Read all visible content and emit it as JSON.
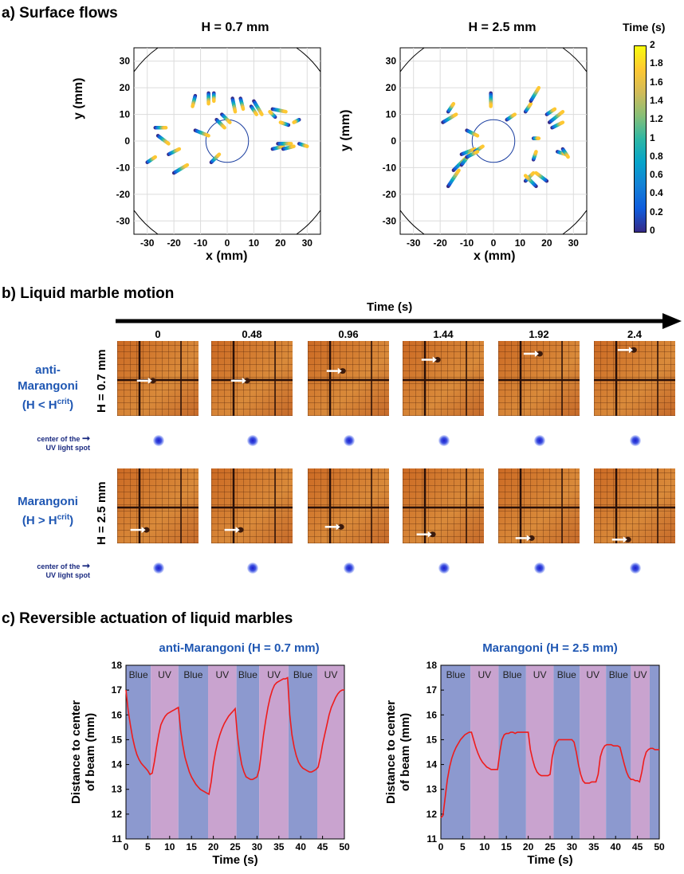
{
  "panel_a": {
    "title": "a) Surface flows",
    "plots": [
      {
        "title": "H = 0.7 mm",
        "xlabel": "x (mm)",
        "ylabel": "y (mm)"
      },
      {
        "title": "H = 2.5 mm",
        "xlabel": "x (mm)",
        "ylabel": "y (mm)"
      }
    ],
    "ticks": [
      "-30",
      "-20",
      "-10",
      "0",
      "10",
      "20",
      "30"
    ],
    "yticks": [
      "30",
      "20",
      "10",
      "0",
      "-10",
      "-20",
      "-30"
    ],
    "colorbar": {
      "title": "Time (s)",
      "ticks": [
        "2",
        "1.8",
        "1.6",
        "1.4",
        "1.2",
        "1",
        "0.8",
        "0.6",
        "0.4",
        "0.2",
        "0"
      ],
      "colors": [
        "#352a87",
        "#0f5cdd",
        "#1481d6",
        "#06a4ca",
        "#2eb7a4",
        "#87bf77",
        "#d1bb59",
        "#fec832",
        "#f9fb0e"
      ]
    }
  },
  "panel_b": {
    "title": "b) Liquid marble motion",
    "time_axis_label": "Time (s)",
    "times": [
      "0",
      "0.48",
      "0.96",
      "1.44",
      "1.92",
      "2.4"
    ],
    "row1": {
      "label_line1": "anti-",
      "label_line2": "Marangoni",
      "label_line3_pre": "(H < H",
      "label_line3_sup": "crit",
      "label_line3_post": ")",
      "side_label": "H = 0.7 mm"
    },
    "row2": {
      "label_line1": "Marangoni",
      "label_line2_pre": "(H > H",
      "label_line2_sup": "crit",
      "label_line2_post": ")",
      "side_label": "H = 2.5 mm"
    },
    "uv_label_line1": "center of the",
    "uv_label_line2": "UV light spot"
  },
  "panel_c": {
    "title": "c) Reversible actuation of liquid marbles",
    "plots": [
      {
        "title": "anti-Marangoni (H = 0.7 mm)",
        "band_labels": [
          "Blue",
          "UV",
          "Blue",
          "UV",
          "Blue",
          "UV",
          "Blue",
          "UV"
        ]
      },
      {
        "title": "Marangoni (H = 2.5 mm)",
        "band_labels": [
          "Blue",
          "UV",
          "Blue",
          "UV",
          "Blue",
          "UV",
          "Blue",
          "UV"
        ]
      }
    ],
    "ylabel_line1": "Distance to center",
    "ylabel_line2": "of beam (mm)",
    "xlabel": "Time (s)",
    "xticks": [
      "0",
      "5",
      "10",
      "15",
      "20",
      "25",
      "30",
      "35",
      "40",
      "45",
      "50"
    ],
    "yticks": [
      "18",
      "17",
      "16",
      "15",
      "14",
      "13",
      "12",
      "11"
    ],
    "colors": {
      "blue_band": "#8c99cf",
      "uv_band": "#c9a3cf",
      "line": "#ee1c1c"
    }
  },
  "chart_data": [
    {
      "type": "line",
      "title": "anti-Marangoni (H = 0.7 mm)",
      "xlabel": "Time (s)",
      "ylabel": "Distance to center of beam (mm)",
      "xlim": [
        0,
        50
      ],
      "ylim": [
        11,
        18
      ],
      "bands": [
        {
          "label": "Blue",
          "x0": 0,
          "x1": 5.7
        },
        {
          "label": "UV",
          "x0": 5.7,
          "x1": 12
        },
        {
          "label": "Blue",
          "x0": 12,
          "x1": 18.8
        },
        {
          "label": "UV",
          "x0": 18.8,
          "x1": 25.3
        },
        {
          "label": "Blue",
          "x0": 25.3,
          "x1": 30.5
        },
        {
          "label": "UV",
          "x0": 30.5,
          "x1": 37.2
        },
        {
          "label": "Blue",
          "x0": 37.2,
          "x1": 43.8
        },
        {
          "label": "UV",
          "x0": 43.8,
          "x1": 50
        }
      ],
      "series": [
        {
          "x": [
            0,
            0.5,
            1,
            1.5,
            2,
            2.5,
            3,
            3.5,
            4,
            4.5,
            5,
            5.5,
            6,
            6.5,
            7,
            7.5,
            8,
            8.5,
            9,
            9.5,
            10,
            10.5,
            11,
            11.5,
            12,
            12.5,
            13,
            13.5,
            14,
            14.5,
            15,
            15.5,
            16,
            16.5,
            17,
            17.5,
            18,
            18.5,
            19,
            19.5,
            20,
            20.5,
            21,
            21.5,
            22,
            22.5,
            23,
            23.5,
            24,
            24.5,
            25,
            25.5,
            26,
            26.5,
            27,
            27.5,
            28,
            28.5,
            29,
            29.5,
            30,
            30.5,
            31,
            31.5,
            32,
            32.5,
            33,
            33.5,
            34,
            34.5,
            35,
            35.5,
            36,
            36.5,
            37,
            37.5,
            38,
            38.5,
            39,
            39.5,
            40,
            40.5,
            41,
            41.5,
            42,
            42.5,
            43,
            43.5,
            44,
            44.5,
            45,
            45.5,
            46,
            46.5,
            47,
            47.5,
            48,
            48.5,
            49,
            49.5,
            50
          ],
          "y": [
            17.0,
            16.2,
            15.6,
            15.1,
            14.7,
            14.4,
            14.2,
            14.05,
            13.95,
            13.85,
            13.75,
            13.6,
            13.65,
            14.1,
            14.7,
            15.2,
            15.6,
            15.8,
            15.95,
            16.05,
            16.1,
            16.15,
            16.2,
            16.25,
            16.3,
            15.4,
            14.8,
            14.3,
            14.0,
            13.7,
            13.5,
            13.35,
            13.2,
            13.1,
            13.0,
            12.95,
            12.9,
            12.85,
            12.8,
            13.3,
            14.0,
            14.5,
            14.9,
            15.2,
            15.45,
            15.65,
            15.8,
            15.95,
            16.05,
            16.15,
            16.25,
            15.2,
            14.5,
            14.0,
            13.7,
            13.5,
            13.45,
            13.4,
            13.4,
            13.45,
            13.5,
            13.8,
            14.5,
            15.2,
            15.8,
            16.3,
            16.7,
            17.0,
            17.2,
            17.3,
            17.35,
            17.4,
            17.45,
            17.45,
            17.5,
            16.0,
            15.2,
            14.7,
            14.35,
            14.1,
            13.95,
            13.85,
            13.8,
            13.75,
            13.7,
            13.7,
            13.75,
            13.8,
            13.9,
            14.3,
            14.8,
            15.2,
            15.6,
            16.0,
            16.3,
            16.5,
            16.7,
            16.85,
            16.95,
            17.0,
            17.0
          ]
        }
      ]
    },
    {
      "type": "line",
      "title": "Marangoni (H = 2.5 mm)",
      "xlabel": "Time (s)",
      "ylabel": "Distance to center of beam (mm)",
      "xlim": [
        0,
        50
      ],
      "ylim": [
        11,
        18
      ],
      "bands": [
        {
          "label": "Blue",
          "x0": 0,
          "x1": 6.8
        },
        {
          "label": "UV",
          "x0": 6.8,
          "x1": 13.2
        },
        {
          "label": "Blue",
          "x0": 13.2,
          "x1": 19.5
        },
        {
          "label": "UV",
          "x0": 19.5,
          "x1": 25.8
        },
        {
          "label": "Blue",
          "x0": 25.8,
          "x1": 31.8
        },
        {
          "label": "UV",
          "x0": 31.8,
          "x1": 37.8
        },
        {
          "label": "Blue",
          "x0": 37.8,
          "x1": 43.5
        },
        {
          "label": "UV",
          "x0": 43.5,
          "x1": 47.8
        },
        {
          "label": "",
          "x0": 47.8,
          "x1": 50
        }
      ],
      "series": [
        {
          "x": [
            0,
            0.5,
            1,
            1.5,
            2,
            2.5,
            3,
            3.5,
            4,
            4.5,
            5,
            5.5,
            6,
            6.5,
            7,
            7.5,
            8,
            8.5,
            9,
            9.5,
            10,
            10.5,
            11,
            11.5,
            12,
            12.5,
            13,
            13.5,
            14,
            14.5,
            15,
            15.5,
            16,
            16.5,
            17,
            17.5,
            18,
            18.5,
            19,
            19.5,
            20,
            20.5,
            21,
            21.5,
            22,
            22.5,
            23,
            23.5,
            24,
            24.5,
            25,
            25.5,
            26,
            26.5,
            27,
            27.5,
            28,
            28.5,
            29,
            29.5,
            30,
            30.5,
            31,
            31.5,
            32,
            32.5,
            33,
            33.5,
            34,
            34.5,
            35,
            35.5,
            36,
            36.5,
            37,
            37.5,
            38,
            38.5,
            39,
            39.5,
            40,
            40.5,
            41,
            41.5,
            42,
            42.5,
            43,
            43.5,
            44,
            44.5,
            45,
            45.5,
            46,
            46.5,
            47,
            47.5,
            48,
            48.5,
            49,
            49.5,
            50
          ],
          "y": [
            11.85,
            11.95,
            12.7,
            13.4,
            13.9,
            14.25,
            14.5,
            14.7,
            14.85,
            15.0,
            15.1,
            15.2,
            15.25,
            15.3,
            15.3,
            15.0,
            14.7,
            14.45,
            14.25,
            14.1,
            14.0,
            13.9,
            13.85,
            13.8,
            13.8,
            13.8,
            13.8,
            14.5,
            15.0,
            15.2,
            15.25,
            15.25,
            15.3,
            15.3,
            15.25,
            15.3,
            15.3,
            15.3,
            15.3,
            15.3,
            15.3,
            14.6,
            14.2,
            13.9,
            13.7,
            13.6,
            13.55,
            13.55,
            13.55,
            13.55,
            13.6,
            14.3,
            14.7,
            14.9,
            15.0,
            15.0,
            15.0,
            15.0,
            15.0,
            15.0,
            15.0,
            14.9,
            14.5,
            14.0,
            13.6,
            13.35,
            13.25,
            13.25,
            13.25,
            13.3,
            13.3,
            13.3,
            13.6,
            14.3,
            14.6,
            14.75,
            14.8,
            14.8,
            14.8,
            14.75,
            14.75,
            14.75,
            14.7,
            14.35,
            14.0,
            13.7,
            13.5,
            13.4,
            13.4,
            13.35,
            13.35,
            13.3,
            13.7,
            14.2,
            14.5,
            14.6,
            14.65,
            14.65,
            14.6,
            14.6,
            14.6
          ]
        }
      ]
    }
  ]
}
